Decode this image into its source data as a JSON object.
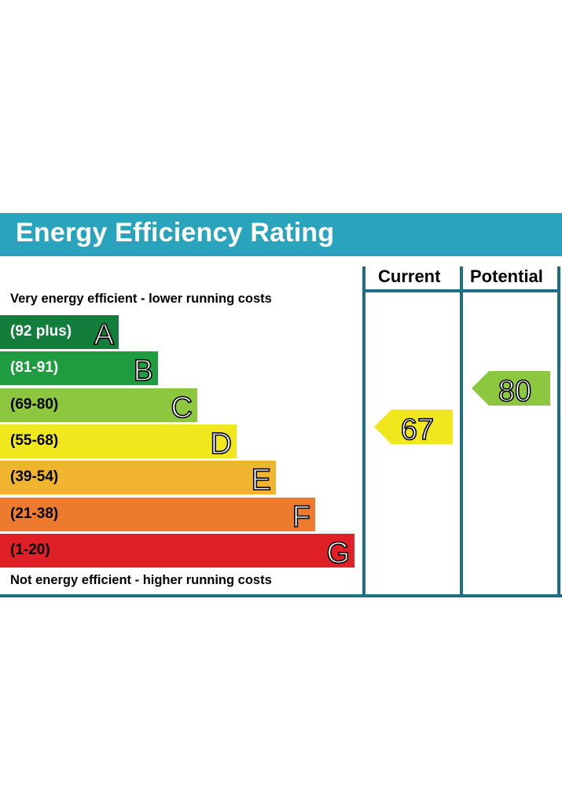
{
  "title": "Energy Efficiency Rating",
  "columns": {
    "current": "Current",
    "potential": "Potential"
  },
  "top_caption": "Very energy efficient - lower running costs",
  "bottom_caption": "Not energy efficient - higher running costs",
  "colors": {
    "header": "#2aa3bd",
    "frame": "#1c6f86",
    "A": "#137e3c",
    "B": "#1f9b40",
    "C": "#8dc63f",
    "D": "#f0e81c",
    "E": "#f0b52e",
    "F": "#ed7b2f",
    "G": "#e02027"
  },
  "chart_data": {
    "type": "bar",
    "categories": [
      "A",
      "B",
      "C",
      "D",
      "E",
      "F",
      "G"
    ],
    "ranges": [
      "(92 plus)",
      "(81-91)",
      "(69-80)",
      "(55-68)",
      "(39-54)",
      "(21-38)",
      "(1-20)"
    ],
    "current": {
      "value": 67,
      "band": "D"
    },
    "potential": {
      "value": 80,
      "band": "C"
    }
  }
}
